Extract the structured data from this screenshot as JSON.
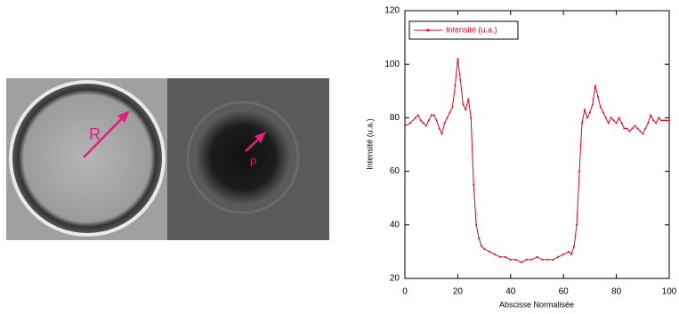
{
  "figure": {
    "labels": [
      "R",
      "ρ"
    ]
  },
  "chart_data": {
    "type": "line",
    "x_label": "Abscisse Normalisée",
    "y_label": "Intensité (u.a.)",
    "x": [
      0,
      2,
      4,
      5,
      6,
      7,
      8,
      9,
      10,
      11,
      12,
      13,
      14,
      15,
      16,
      17,
      18,
      19,
      20,
      21,
      22,
      23,
      24,
      25,
      26,
      27,
      28,
      29,
      30,
      32,
      34,
      36,
      38,
      40,
      42,
      44,
      46,
      48,
      50,
      52,
      54,
      56,
      58,
      60,
      62,
      63,
      64,
      65,
      66,
      67,
      68,
      69,
      70,
      71,
      72,
      73,
      74,
      75,
      76,
      77,
      78,
      79,
      80,
      81,
      82,
      83,
      84,
      85,
      86,
      87,
      88,
      89,
      90,
      91,
      92,
      93,
      94,
      95,
      96,
      97,
      98,
      99,
      100
    ],
    "series": [
      {
        "name": "Intensité (u.a.)",
        "color": "#e0001b",
        "values": [
          77,
          78,
          80,
          81,
          79,
          78,
          77,
          79,
          81,
          81,
          79,
          76,
          74,
          78,
          80,
          82,
          84,
          92,
          102,
          94,
          85,
          83,
          87,
          80,
          55,
          40,
          35,
          32,
          31,
          30,
          29,
          28,
          28,
          27,
          27,
          26,
          27,
          27,
          28,
          27,
          27,
          27,
          28,
          29,
          30,
          29,
          32,
          40,
          60,
          78,
          83,
          80,
          82,
          85,
          92,
          88,
          84,
          82,
          80,
          78,
          80,
          79,
          78,
          80,
          78,
          76,
          76,
          75,
          76,
          77,
          76,
          75,
          74,
          76,
          78,
          81,
          79,
          78,
          80,
          79,
          79,
          79,
          79
        ]
      }
    ],
    "xlim": [
      0,
      100
    ],
    "ylim": [
      20,
      120
    ],
    "xticks": [
      0,
      20,
      40,
      60,
      80,
      100
    ],
    "yticks": [
      20,
      40,
      60,
      80,
      100,
      120
    ],
    "legend": "upper left"
  }
}
